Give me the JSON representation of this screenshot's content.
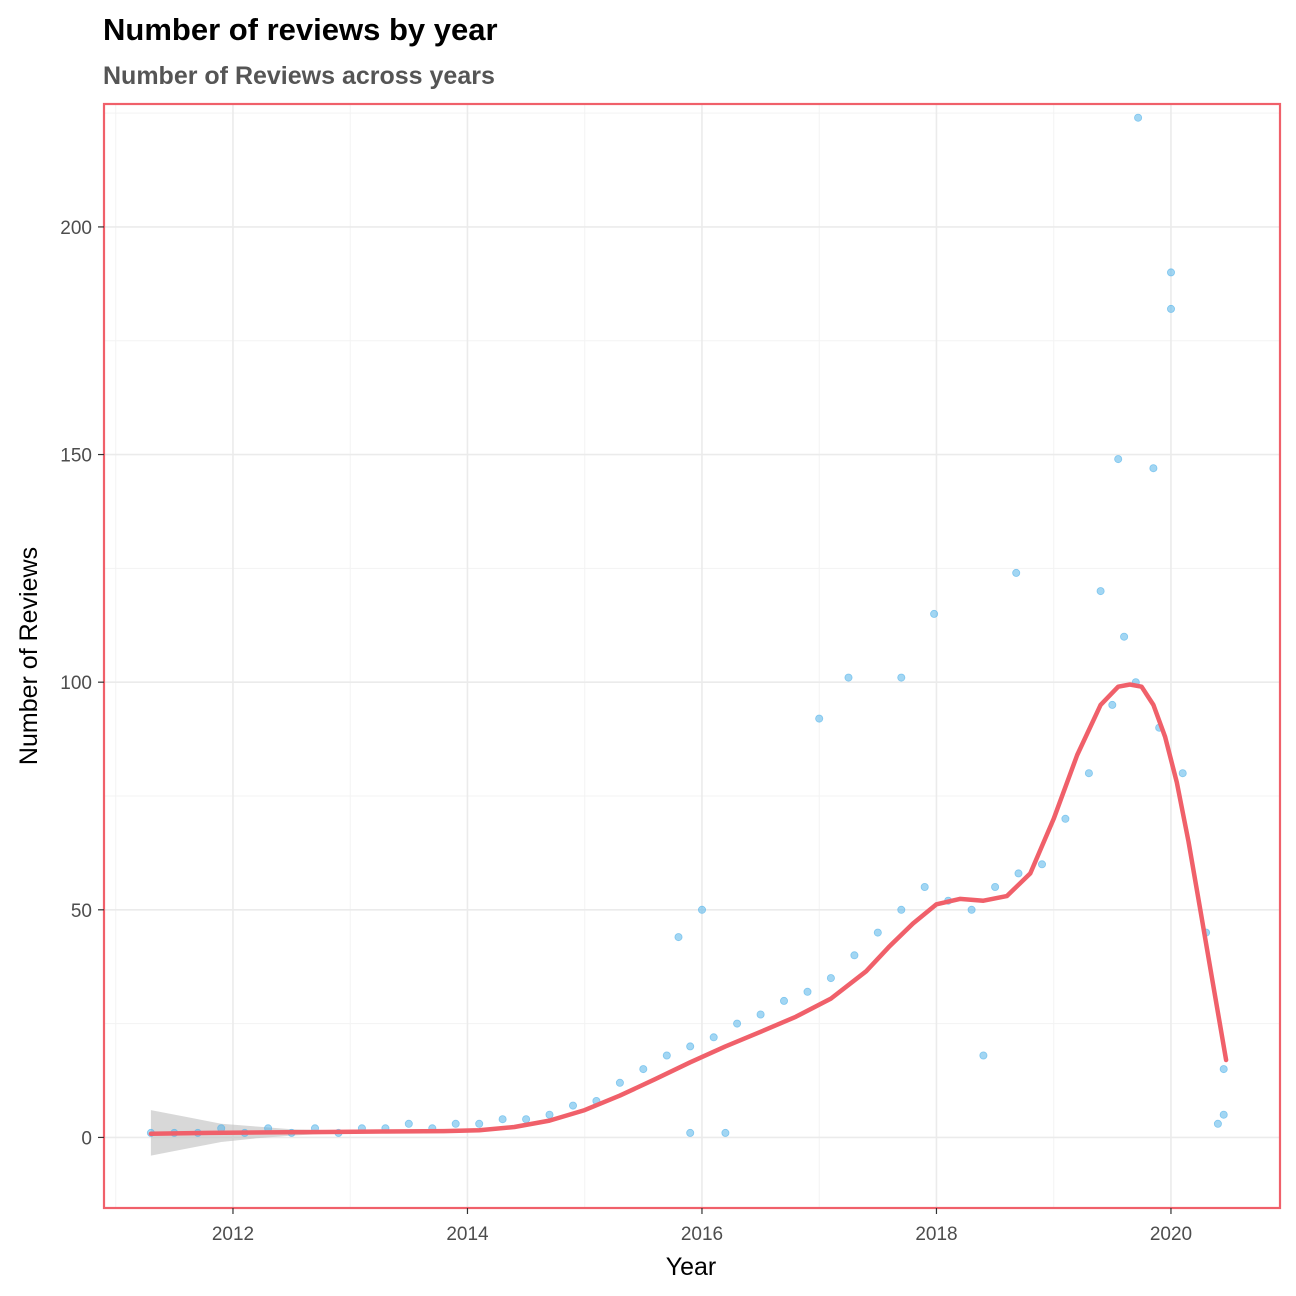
{
  "chart_data": {
    "type": "scatter",
    "title": "Number of reviews by year",
    "subtitle": "Number of Reviews across years",
    "xlabel": "Year",
    "ylabel": "Number of Reviews",
    "xlim": [
      2010.9,
      2020.93
    ],
    "ylim": [
      -15.5,
      227
    ],
    "x_ticks": [
      2012,
      2014,
      2016,
      2018,
      2020
    ],
    "x_tick_labels": [
      "2012",
      "2014",
      "2016",
      "2018",
      "2020"
    ],
    "y_ticks": [
      0,
      50,
      100,
      150,
      200
    ],
    "y_tick_labels": [
      "0",
      "50",
      "100",
      "150",
      "200"
    ],
    "grid": true,
    "legend": "none",
    "colors": {
      "points": "#56B4E9",
      "smooth_line": "#F0606A",
      "confidence_band": "#BEBEBE",
      "panel_border": "#F0606A",
      "grid": "#EBEBEB"
    },
    "series": [
      {
        "kind": "points",
        "description": "daily review counts (representative sample of visible points)",
        "x": [
          2011.3,
          2011.5,
          2011.7,
          2011.9,
          2012.1,
          2012.3,
          2012.5,
          2012.7,
          2012.9,
          2013.1,
          2013.3,
          2013.5,
          2013.7,
          2013.9,
          2014.1,
          2014.3,
          2014.5,
          2014.7,
          2014.9,
          2015.1,
          2015.3,
          2015.5,
          2015.7,
          2015.9,
          2016.1,
          2016.3,
          2016.5,
          2016.7,
          2016.9,
          2017.1,
          2017.3,
          2017.5,
          2017.7,
          2017.9,
          2018.1,
          2018.3,
          2018.5,
          2018.7,
          2018.9,
          2019.1,
          2019.3,
          2019.5,
          2019.7,
          2019.9,
          2020.1,
          2020.3,
          2020.45,
          2019.72,
          2020.0,
          2020.0,
          2019.85,
          2019.55,
          2018.68,
          2017.98,
          2017.25,
          2017.0,
          2016.0,
          2015.8,
          2015.9,
          2016.2,
          2020.4,
          2020.45,
          2019.6,
          2019.4,
          2018.4,
          2017.7
        ],
        "y": [
          1,
          1,
          1,
          2,
          1,
          2,
          1,
          2,
          1,
          2,
          2,
          3,
          2,
          3,
          3,
          4,
          4,
          5,
          7,
          8,
          12,
          15,
          18,
          20,
          22,
          25,
          27,
          30,
          32,
          35,
          40,
          45,
          50,
          55,
          52,
          50,
          55,
          58,
          60,
          70,
          80,
          95,
          100,
          90,
          80,
          45,
          15,
          224,
          190,
          182,
          147,
          149,
          124,
          115,
          101,
          92,
          50,
          44,
          1,
          1,
          3,
          5,
          110,
          120,
          18,
          101
        ]
      },
      {
        "kind": "smooth_line",
        "description": "LOESS smoothed trend",
        "x": [
          2011.3,
          2011.8,
          2012.3,
          2012.8,
          2013.3,
          2013.8,
          2014.1,
          2014.4,
          2014.7,
          2015.0,
          2015.3,
          2015.6,
          2015.9,
          2016.2,
          2016.5,
          2016.8,
          2017.1,
          2017.4,
          2017.6,
          2017.8,
          2018.0,
          2018.2,
          2018.4,
          2018.6,
          2018.8,
          2019.0,
          2019.2,
          2019.4,
          2019.55,
          2019.65,
          2019.75,
          2019.85,
          2019.95,
          2020.05,
          2020.15,
          2020.25,
          2020.35,
          2020.47
        ],
        "y": [
          0.8,
          1.0,
          1.1,
          1.2,
          1.3,
          1.4,
          1.6,
          2.3,
          3.7,
          6.0,
          9.2,
          12.8,
          16.5,
          20.0,
          23.2,
          26.5,
          30.5,
          36.5,
          42.0,
          47.0,
          51.2,
          52.4,
          52.0,
          53.0,
          58.0,
          70.0,
          84.0,
          95.0,
          99.0,
          99.5,
          99.0,
          95.0,
          88.0,
          78.0,
          65.0,
          50.0,
          35.0,
          17.0
        ]
      },
      {
        "kind": "confidence_band",
        "description": "95% confidence band around the smooth (visible only where it widens)",
        "x": [
          2011.3,
          2011.6,
          2011.9,
          2012.2,
          2012.5,
          2012.8
        ],
        "lower": [
          -4.0,
          -2.5,
          -1.0,
          -0.2,
          0.4,
          0.8
        ],
        "upper": [
          6.0,
          4.5,
          3.0,
          2.4,
          1.8,
          1.6
        ]
      }
    ]
  }
}
